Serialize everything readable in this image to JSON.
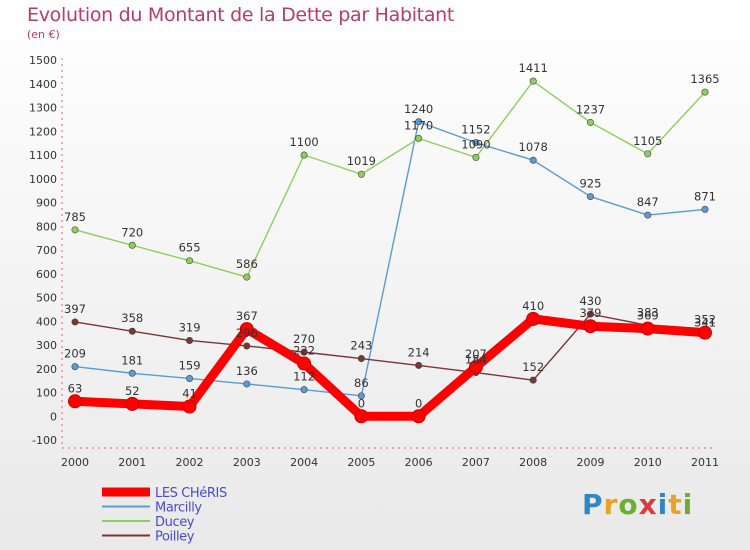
{
  "header": {
    "title": "Evolution du Montant de la Dette par Habitant",
    "subtitle": "(en €)"
  },
  "logo_text": "Proxiti",
  "colors": {
    "title": "#b63c6b",
    "les_cheris": "#ff0000",
    "marcilly": "#5b9bd5",
    "ducey": "#8ccf5a",
    "poilley": "#7a3535"
  },
  "chart_data": {
    "type": "line",
    "title": "Evolution du Montant de la Dette par Habitant",
    "subtitle": "(en €)",
    "xlabel": "",
    "ylabel": "",
    "x": [
      "2000",
      "2001",
      "2002",
      "2003",
      "2004",
      "2005",
      "2006",
      "2007",
      "2008",
      "2009",
      "2010",
      "2011"
    ],
    "ylim": [
      -100,
      1500
    ],
    "yticks": [
      -100,
      0,
      100,
      200,
      300,
      400,
      500,
      600,
      700,
      800,
      900,
      1000,
      1100,
      1200,
      1300,
      1400,
      1500
    ],
    "grid": false,
    "legend_position": "bottom-left",
    "series": [
      {
        "name": "LES CHéRIS",
        "color": "#ff0000",
        "values": [
          63,
          52,
          41,
          367,
          222,
          0,
          0,
          207,
          410,
          379,
          369,
          352
        ],
        "labels": [
          "63",
          "52",
          "41",
          "367",
          "222",
          "0",
          "0",
          "207",
          "410",
          "379",
          "369",
          "352"
        ]
      },
      {
        "name": "Marcilly",
        "color": "#5b9bd5",
        "values": [
          209,
          181,
          159,
          136,
          112,
          86,
          1240,
          1152,
          1078,
          925,
          847,
          871
        ],
        "labels": [
          "209",
          "181",
          "159",
          "136",
          "112",
          "86",
          "1240",
          "1152",
          "1078",
          "925",
          "847",
          "871"
        ]
      },
      {
        "name": "Ducey",
        "color": "#8ccf5a",
        "values": [
          785,
          720,
          655,
          586,
          1100,
          1019,
          1170,
          1090,
          1411,
          1237,
          1105,
          1365
        ],
        "labels": [
          "785",
          "720",
          "655",
          "586",
          "1100",
          "1019",
          "1170",
          "1090",
          "1411",
          "1237",
          "1105",
          "1365"
        ]
      },
      {
        "name": "Poilley",
        "color": "#7a3535",
        "values": [
          397,
          358,
          319,
          296,
          270,
          243,
          214,
          184,
          152,
          430,
          383,
          341
        ],
        "labels": [
          "397",
          "358",
          "319",
          "296",
          "270",
          "243",
          "214",
          "184",
          "152",
          "430",
          "383",
          "341"
        ]
      }
    ]
  }
}
